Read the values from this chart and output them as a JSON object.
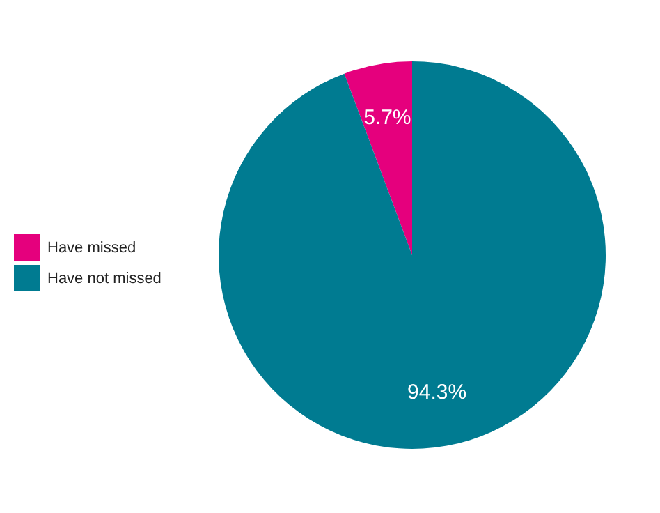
{
  "chart_data": {
    "type": "pie",
    "categories": [
      "Have missed",
      "Have not missed"
    ],
    "values": [
      5.7,
      94.3
    ],
    "colors": [
      "#e5007d",
      "#007b91"
    ],
    "value_labels": [
      "5.7%",
      "94.3%"
    ],
    "legend": "left"
  }
}
